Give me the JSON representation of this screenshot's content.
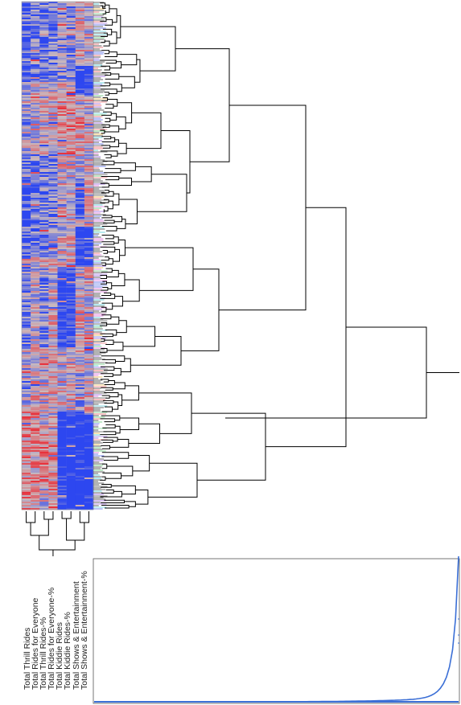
{
  "figure": {
    "variables": [
      "Total Thrill Rides",
      "Total Rides for Everyone",
      "Total Thrill Rides-%",
      "Total Rides for Everyone-%",
      "Total Kiddie Rides",
      "Total Kiddie Rides-%",
      "Total Shows & Entertainment",
      "Total Shows & Entertainment-%"
    ],
    "colors": {
      "low": "#2d47f0",
      "mid": "#c9b9be",
      "high": "#e8323c",
      "tree_line": "#000000",
      "leaf_palette": [
        "#e8323c",
        "#2fb64a",
        "#1f3ae0",
        "#d43fd1",
        "#12b7c9",
        "#f0a20b",
        "#7a33d6"
      ],
      "distribution": "#3b6fd6"
    }
  }
}
